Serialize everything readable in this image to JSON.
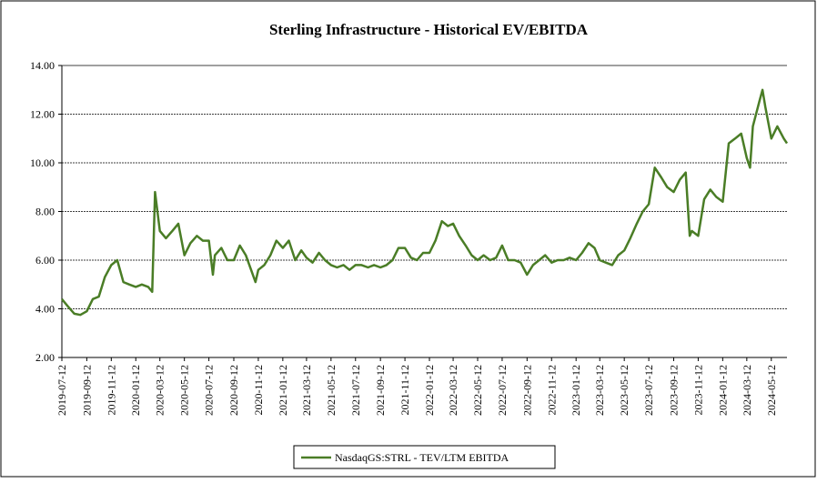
{
  "chart_data": {
    "type": "line",
    "title": "Sterling Infrastructure - Historical EV/EBITDA",
    "x": [
      "2019-07-12",
      "2019-07-27",
      "2019-08-12",
      "2019-08-27",
      "2019-09-12",
      "2019-09-27",
      "2019-10-12",
      "2019-10-27",
      "2019-11-12",
      "2019-11-27",
      "2019-12-12",
      "2019-12-27",
      "2020-01-12",
      "2020-01-27",
      "2020-02-12",
      "2020-02-22",
      "2020-02-29",
      "2020-03-12",
      "2020-03-27",
      "2020-04-12",
      "2020-04-27",
      "2020-05-12",
      "2020-05-27",
      "2020-06-12",
      "2020-06-27",
      "2020-07-12",
      "2020-07-22",
      "2020-07-27",
      "2020-08-12",
      "2020-08-27",
      "2020-09-12",
      "2020-09-27",
      "2020-10-12",
      "2020-11-05",
      "2020-11-12",
      "2020-11-27",
      "2020-12-12",
      "2020-12-27",
      "2021-01-12",
      "2021-01-27",
      "2021-02-12",
      "2021-02-27",
      "2021-03-12",
      "2021-03-27",
      "2021-04-12",
      "2021-04-27",
      "2021-05-12",
      "2021-05-27",
      "2021-06-12",
      "2021-06-27",
      "2021-07-12",
      "2021-07-27",
      "2021-08-12",
      "2021-08-27",
      "2021-09-12",
      "2021-09-27",
      "2021-10-12",
      "2021-10-27",
      "2021-11-12",
      "2021-11-27",
      "2021-12-12",
      "2021-12-27",
      "2022-01-12",
      "2022-01-27",
      "2022-02-12",
      "2022-02-27",
      "2022-03-12",
      "2022-03-27",
      "2022-04-12",
      "2022-04-27",
      "2022-05-12",
      "2022-05-27",
      "2022-06-12",
      "2022-06-27",
      "2022-07-12",
      "2022-07-27",
      "2022-08-12",
      "2022-08-27",
      "2022-09-12",
      "2022-09-27",
      "2022-10-12",
      "2022-10-27",
      "2022-11-12",
      "2022-11-27",
      "2022-12-12",
      "2022-12-27",
      "2023-01-12",
      "2023-01-27",
      "2023-02-12",
      "2023-02-27",
      "2023-03-12",
      "2023-03-27",
      "2023-04-12",
      "2023-04-27",
      "2023-05-12",
      "2023-05-27",
      "2023-06-12",
      "2023-06-27",
      "2023-07-12",
      "2023-07-27",
      "2023-08-12",
      "2023-08-27",
      "2023-09-12",
      "2023-09-27",
      "2023-10-12",
      "2023-10-22",
      "2023-10-27",
      "2023-11-12",
      "2023-11-27",
      "2023-12-12",
      "2023-12-27",
      "2024-01-12",
      "2024-01-27",
      "2024-02-12",
      "2024-02-27",
      "2024-03-12",
      "2024-03-20",
      "2024-03-27",
      "2024-04-12",
      "2024-04-20",
      "2024-04-27",
      "2024-05-12",
      "2024-05-27",
      "2024-06-12",
      "2024-06-20"
    ],
    "series": [
      {
        "name": "NasdaqGS:STRL - TEV/LTM EBITDA",
        "color": "#4a7d26",
        "values": [
          4.4,
          4.1,
          3.8,
          3.75,
          3.9,
          4.4,
          4.5,
          5.3,
          5.8,
          6.0,
          5.1,
          5.0,
          4.9,
          5.0,
          4.9,
          4.7,
          8.8,
          7.2,
          6.9,
          7.2,
          7.5,
          6.2,
          6.7,
          7.0,
          6.8,
          6.8,
          5.4,
          6.2,
          6.5,
          6.0,
          6.0,
          6.6,
          6.2,
          5.1,
          5.6,
          5.8,
          6.2,
          6.8,
          6.5,
          6.8,
          6.0,
          6.4,
          6.1,
          5.9,
          6.3,
          6.0,
          5.8,
          5.7,
          5.8,
          5.6,
          5.8,
          5.8,
          5.7,
          5.8,
          5.7,
          5.8,
          6.0,
          6.5,
          6.5,
          6.1,
          6.0,
          6.3,
          6.3,
          6.8,
          7.6,
          7.4,
          7.5,
          7.0,
          6.6,
          6.2,
          6.0,
          6.2,
          6.0,
          6.1,
          6.6,
          6.0,
          6.0,
          5.9,
          5.4,
          5.8,
          6.0,
          6.2,
          5.9,
          6.0,
          6.0,
          6.1,
          6.0,
          6.3,
          6.7,
          6.5,
          6.0,
          5.9,
          5.8,
          6.2,
          6.4,
          6.9,
          7.5,
          8.0,
          8.3,
          9.8,
          9.4,
          9.0,
          8.8,
          9.3,
          9.6,
          7.0,
          7.2,
          7.0,
          8.5,
          8.9,
          8.6,
          8.4,
          10.8,
          11.0,
          11.2,
          10.2,
          9.8,
          11.5,
          12.5,
          13.0,
          12.3,
          11.0,
          11.5,
          11.0,
          10.8
        ]
      }
    ],
    "xlim": [
      "2019-07-12",
      "2024-06-20"
    ],
    "xticks": [
      "2019-07-12",
      "2019-09-12",
      "2019-11-12",
      "2020-01-12",
      "2020-03-12",
      "2020-05-12",
      "2020-07-12",
      "2020-09-12",
      "2020-11-12",
      "2021-01-12",
      "2021-03-12",
      "2021-05-12",
      "2021-07-12",
      "2021-09-12",
      "2021-11-12",
      "2022-01-12",
      "2022-03-12",
      "2022-05-12",
      "2022-07-12",
      "2022-09-12",
      "2022-11-12",
      "2023-01-12",
      "2023-03-12",
      "2023-05-12",
      "2023-07-12",
      "2023-09-12",
      "2023-11-12",
      "2024-01-12",
      "2024-03-12",
      "2024-05-12"
    ],
    "ylim": [
      2,
      14
    ],
    "yticks": [
      {
        "value": 2,
        "label": "2.00"
      },
      {
        "value": 4,
        "label": "4.00"
      },
      {
        "value": 6,
        "label": "6.00"
      },
      {
        "value": 8,
        "label": "8.00"
      },
      {
        "value": 10,
        "label": "10.00"
      },
      {
        "value": 12,
        "label": "12.00"
      },
      {
        "value": 14,
        "label": "14.00"
      }
    ],
    "grid": true,
    "legend": "bottom"
  }
}
